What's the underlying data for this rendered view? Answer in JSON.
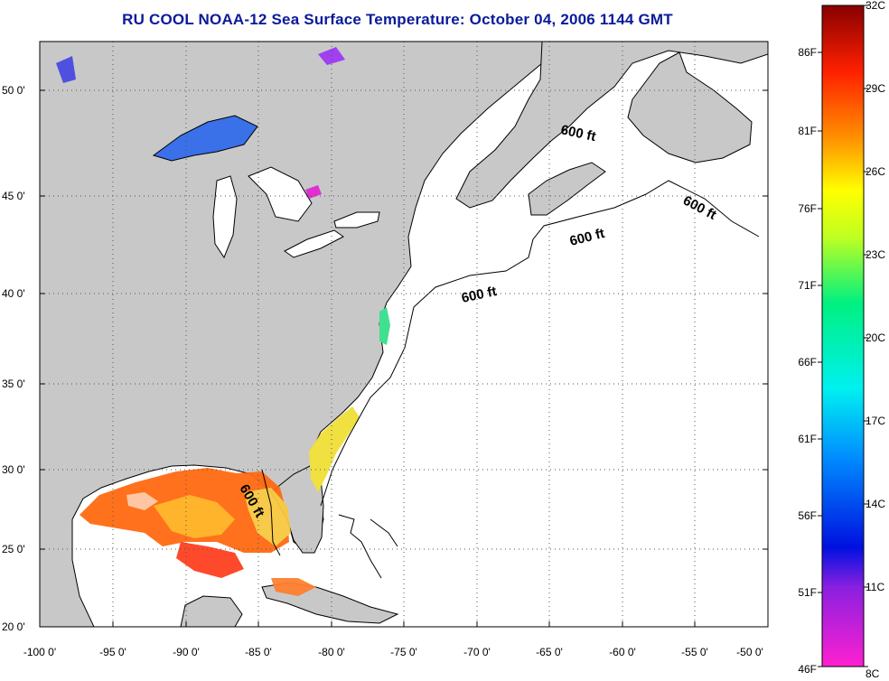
{
  "title": "RU COOL  NOAA-12  Sea Surface Temperature:  October 04, 2006 1144 GMT",
  "lat_labels": [
    "50 0'",
    "45 0'",
    "40 0'",
    "35 0'",
    "30 0'",
    "25 0'",
    "20 0'"
  ],
  "lon_labels": [
    "-100 0'",
    "-95 0'",
    "-90 0'",
    "-85 0'",
    "-80 0'",
    "-75 0'",
    "-70 0'",
    "-65 0'",
    "-60 0'",
    "-55 0'",
    "-50 0'"
  ],
  "isobath_label": "600 ft",
  "colorbar": {
    "fahrenheit": [
      "86F",
      "81F",
      "76F",
      "71F",
      "66F",
      "61F",
      "56F",
      "51F",
      "46F"
    ],
    "celsius": [
      "32C",
      "29C",
      "26C",
      "23C",
      "20C",
      "17C",
      "14C",
      "11C",
      "8C"
    ]
  },
  "colors": {
    "land": "#c8c8c8",
    "ocean": "#ffffff",
    "title": "#0a1a9a"
  }
}
